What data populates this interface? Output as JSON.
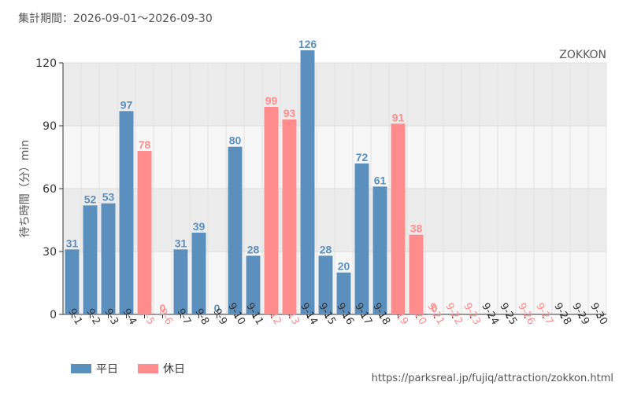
{
  "header": {
    "period": "集計期間：2026-09-01～2026-09-30"
  },
  "footer": {
    "source_url": "https://parksreal.jp/fujiq/attraction/zokkon.html"
  },
  "legend": {
    "weekday": "平日",
    "holiday": "休日"
  },
  "colors": {
    "weekday": "#5b8fbd",
    "holiday": "#ff8c8c",
    "plot_bg_light": "#f7f7f7",
    "plot_bg_dark": "#ececec"
  },
  "chart_data": {
    "type": "bar",
    "title": "",
    "annotation": "ZOKKON",
    "xlabel": "",
    "ylabel": "待ち時間（分）min",
    "ylim": [
      0,
      120
    ],
    "yticks": [
      0,
      30,
      60,
      90,
      120
    ],
    "grid": true,
    "legend_position": "bottom-left",
    "categories": [
      "9-1",
      "9-2",
      "9-3",
      "9-4",
      "9-5",
      "9-6",
      "9-7",
      "9-8",
      "9-9",
      "9-10",
      "9-11",
      "9-12",
      "9-13",
      "9-14",
      "9-15",
      "9-16",
      "9-17",
      "9-18",
      "9-19",
      "9-20",
      "9-21",
      "9-22",
      "9-23",
      "9-24",
      "9-25",
      "9-26",
      "9-27",
      "9-28",
      "9-29",
      "9-30"
    ],
    "values": [
      31,
      52,
      53,
      97,
      78,
      0,
      31,
      39,
      0,
      80,
      28,
      99,
      93,
      126,
      28,
      20,
      72,
      61,
      91,
      38,
      0,
      null,
      null,
      null,
      null,
      null,
      null,
      null,
      null,
      null
    ],
    "day_type": [
      "weekday",
      "weekday",
      "weekday",
      "weekday",
      "holiday",
      "holiday",
      "weekday",
      "weekday",
      "weekday",
      "weekday",
      "weekday",
      "holiday",
      "holiday",
      "weekday",
      "weekday",
      "weekday",
      "weekday",
      "weekday",
      "holiday",
      "holiday",
      "holiday",
      "holiday",
      "holiday",
      "weekday",
      "weekday",
      "holiday",
      "holiday",
      "weekday",
      "weekday",
      "weekday"
    ]
  }
}
